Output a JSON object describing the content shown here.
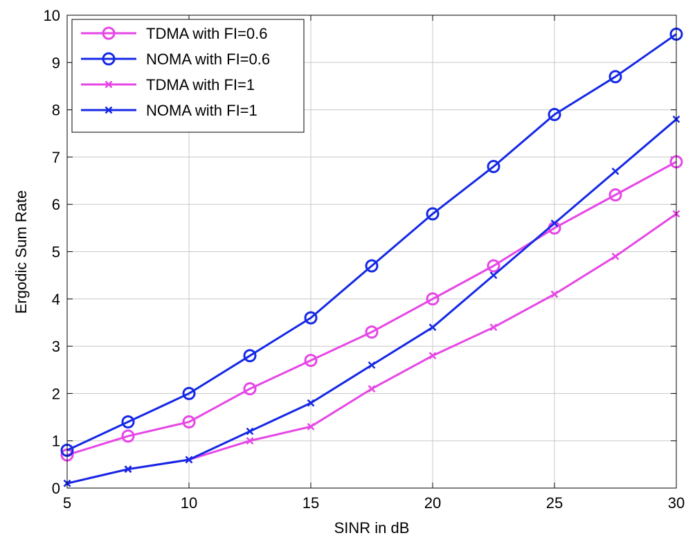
{
  "chart_data": {
    "type": "line",
    "title": "",
    "xlabel": "SINR in dB",
    "ylabel": "Ergodic Sum Rate",
    "xlim": [
      5,
      30
    ],
    "ylim": [
      0,
      10
    ],
    "xticks": [
      5,
      10,
      15,
      20,
      25,
      30
    ],
    "yticks": [
      0,
      1,
      2,
      3,
      4,
      5,
      6,
      7,
      8,
      9,
      10
    ],
    "grid": true,
    "legend_position": "top-left",
    "x": [
      5,
      7.5,
      10,
      12.5,
      15,
      17.5,
      20,
      22.5,
      25,
      27.5,
      30
    ],
    "series": [
      {
        "name": "TDMA with FI=0.6",
        "color": "#e646e6",
        "marker": "circle",
        "values": [
          0.7,
          1.1,
          1.4,
          2.1,
          2.7,
          3.3,
          4.0,
          4.7,
          5.5,
          6.2,
          6.9
        ]
      },
      {
        "name": "NOMA with FI=0.6",
        "color": "#1428e6",
        "marker": "circle",
        "values": [
          0.8,
          1.4,
          2.0,
          2.8,
          3.6,
          4.7,
          5.8,
          6.8,
          7.9,
          8.7,
          9.6
        ]
      },
      {
        "name": "TDMA with FI=1",
        "color": "#e646e6",
        "marker": "x",
        "values": [
          0.1,
          0.4,
          0.6,
          1.0,
          1.3,
          2.1,
          2.8,
          3.4,
          4.1,
          4.9,
          5.8
        ]
      },
      {
        "name": "NOMA with FI=1",
        "color": "#1428e6",
        "marker": "x",
        "values": [
          0.1,
          0.4,
          0.6,
          1.2,
          1.8,
          2.6,
          3.4,
          4.5,
          5.6,
          6.7,
          7.8
        ]
      }
    ]
  }
}
